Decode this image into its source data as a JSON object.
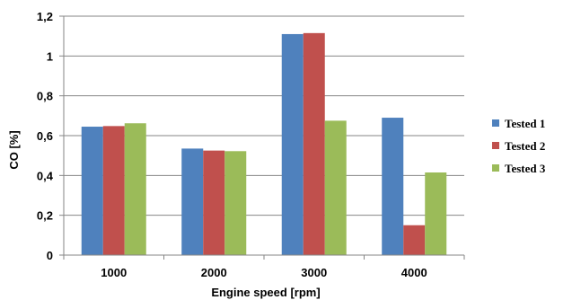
{
  "chart_data": {
    "type": "bar",
    "title": "",
    "xlabel": "Engine speed [rpm]",
    "ylabel": "CO [%]",
    "categories": [
      "1000",
      "2000",
      "3000",
      "4000"
    ],
    "ylim": [
      0,
      1.2
    ],
    "yticks": [
      "0",
      "0,2",
      "0,4",
      "0,6",
      "0,8",
      "1",
      "1,2"
    ],
    "grid": true,
    "legend_position": "right",
    "series": [
      {
        "name": "Tested 1",
        "color": "#4F81BD",
        "values": [
          0.645,
          0.535,
          1.11,
          0.69
        ]
      },
      {
        "name": "Tested 2",
        "color": "#C0504D",
        "values": [
          0.648,
          0.525,
          1.115,
          0.15
        ]
      },
      {
        "name": "Tested 3",
        "color": "#9BBB59",
        "values": [
          0.662,
          0.522,
          0.675,
          0.415
        ]
      }
    ]
  }
}
